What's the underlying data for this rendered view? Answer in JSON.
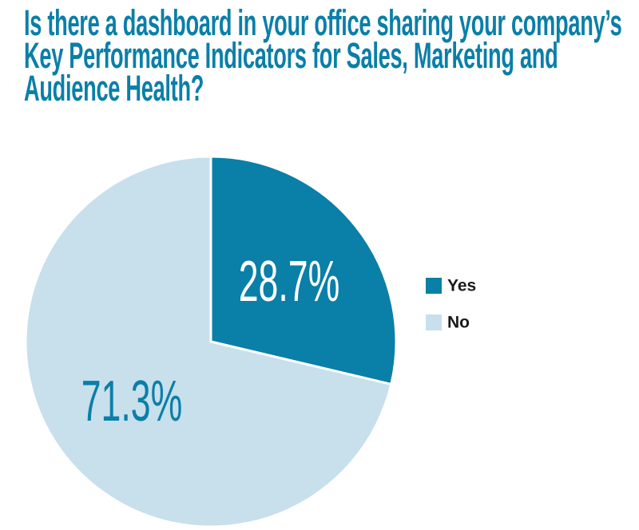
{
  "chart_data": {
    "type": "pie",
    "title": "Is there a dashboard in your office sharing your company’s Key Performance Indicators for Sales, Marketing and Audience Health?",
    "categories": [
      "Yes",
      "No"
    ],
    "values": [
      28.7,
      71.3
    ],
    "value_labels": [
      "28.7%",
      "71.3%"
    ],
    "colors": [
      "#0a7fa8",
      "#c8dfec"
    ]
  }
}
